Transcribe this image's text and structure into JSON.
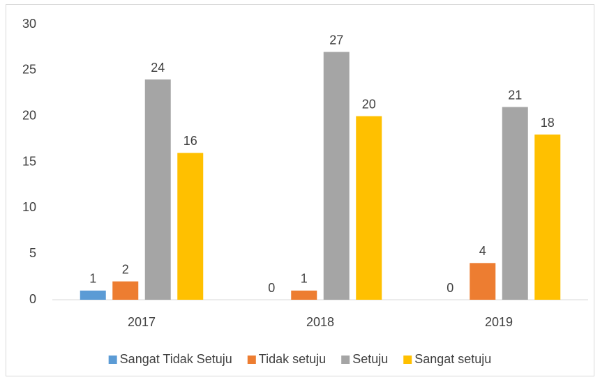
{
  "chart_data": {
    "type": "bar",
    "categories": [
      "2017",
      "2018",
      "2019"
    ],
    "series": [
      {
        "name": "Sangat Tidak Setuju",
        "color": "#5b9bd5",
        "values": [
          1,
          0,
          0
        ]
      },
      {
        "name": "Tidak setuju",
        "color": "#ed7d31",
        "values": [
          2,
          1,
          4
        ]
      },
      {
        "name": "Setuju",
        "color": "#a5a5a5",
        "values": [
          24,
          27,
          21
        ]
      },
      {
        "name": "Sangat setuju",
        "color": "#ffc000",
        "values": [
          16,
          20,
          18
        ]
      }
    ],
    "ylim": [
      0,
      30
    ],
    "yticks": [
      0,
      5,
      10,
      15,
      20,
      25,
      30
    ],
    "grid": false,
    "legend": "bottom"
  }
}
